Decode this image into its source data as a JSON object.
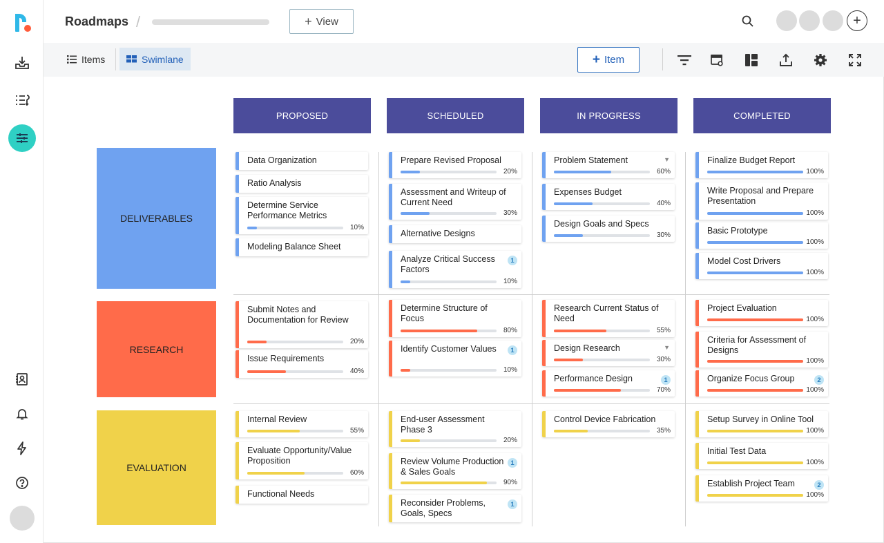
{
  "header": {
    "title": "Roadmaps",
    "separator": "/",
    "view_button": "View",
    "view_button_icon": "plus-icon"
  },
  "toolbar": {
    "tabs": [
      {
        "label": "Items",
        "icon": "list-icon",
        "active": false
      },
      {
        "label": "Swimlane",
        "icon": "swimlane-icon",
        "active": true
      }
    ],
    "item_button": "Item",
    "tool_icons": [
      "filter-icon",
      "card-settings-icon",
      "layout-icon",
      "export-icon",
      "settings-icon",
      "fullscreen-icon"
    ]
  },
  "rail_icons": [
    "inbox-icon",
    "list-sort-icon",
    "roadmap-icon",
    "contacts-icon",
    "bell-icon",
    "lightning-icon",
    "help-icon"
  ],
  "colors": {
    "header": "#4b4c9b",
    "deliverables": "#6fa2f0",
    "research": "#ff6b4a",
    "evaluation": "#f0d24a",
    "teal": "#2fd0c4",
    "accent": "#2260b8"
  },
  "columns": [
    "PROPOSED",
    "SCHEDULED",
    "IN PROGRESS",
    "COMPLETED"
  ],
  "lanes": [
    {
      "name": "DELIVERABLES",
      "cards": [
        [
          {
            "title": "Data Organization"
          },
          {
            "title": "Ratio Analysis"
          },
          {
            "title": "Determine Service Performance Metrics",
            "progress": 10,
            "label": "10%"
          },
          {
            "title": "Modeling Balance Sheet"
          }
        ],
        [
          {
            "title": "Prepare Revised Proposal",
            "progress": 20,
            "label": "20%"
          },
          {
            "title": "Assessment and Writeup of Current Need",
            "progress": 30,
            "label": "30%"
          },
          {
            "title": "Alternative Designs"
          },
          {
            "title": "Analyze Critical Success Factors",
            "progress": 10,
            "label": "10%",
            "badge": "1"
          }
        ],
        [
          {
            "title": "Problem Statement",
            "progress": 60,
            "label": "60%",
            "caret": "▼"
          },
          {
            "title": "Expenses Budget",
            "progress": 40,
            "label": "40%"
          },
          {
            "title": "Design Goals and Specs",
            "progress": 30,
            "label": "30%"
          }
        ],
        [
          {
            "title": "Finalize Budget Report",
            "progress": 100,
            "label": "100%"
          },
          {
            "title": "Write Proposal and Prepare Presentation",
            "progress": 100,
            "label": "100%"
          },
          {
            "title": "Basic Prototype",
            "progress": 100,
            "label": "100%"
          },
          {
            "title": "Model Cost Drivers",
            "progress": 100,
            "label": "100%"
          }
        ]
      ]
    },
    {
      "name": "RESEARCH",
      "cards": [
        [
          {
            "title": "Submit Notes and Documentation for Review",
            "progress": 20,
            "label": "20%"
          },
          {
            "title": "Issue Requirements",
            "progress": 40,
            "label": "40%"
          }
        ],
        [
          {
            "title": "Determine Structure of Focus",
            "progress": 80,
            "label": "80%"
          },
          {
            "title": "Identify Customer Values",
            "progress": 10,
            "label": "10%",
            "badge": "1"
          }
        ],
        [
          {
            "title": "Research Current Status of Need",
            "progress": 55,
            "label": "55%"
          },
          {
            "title": "Design Research",
            "progress": 30,
            "label": "30%",
            "caret": "▼"
          },
          {
            "title": "Performance Design",
            "progress": 70,
            "label": "70%",
            "badge": "1"
          }
        ],
        [
          {
            "title": "Project Evaluation",
            "progress": 100,
            "label": "100%"
          },
          {
            "title": "Criteria for Assessment of Designs",
            "progress": 100,
            "label": "100%"
          },
          {
            "title": "Organize Focus Group",
            "progress": 100,
            "label": "100%",
            "badge": "2"
          }
        ]
      ]
    },
    {
      "name": "EVALUATION",
      "cards": [
        [
          {
            "title": "Internal Review",
            "progress": 55,
            "label": "55%"
          },
          {
            "title": "Evaluate Opportunity/Value Proposition",
            "progress": 60,
            "label": "60%"
          },
          {
            "title": "Functional Needs"
          }
        ],
        [
          {
            "title": "End-user Assessment Phase 3",
            "progress": 20,
            "label": "20%"
          },
          {
            "title": "Review Volume Production & Sales Goals",
            "progress": 90,
            "label": "90%",
            "badge": "1"
          },
          {
            "title": "Reconsider Problems, Goals, Specs",
            "badge": "1"
          }
        ],
        [
          {
            "title": "Control Device Fabrication",
            "progress": 35,
            "label": "35%"
          }
        ],
        [
          {
            "title": "Setup Survey in Online Tool",
            "progress": 100,
            "label": "100%"
          },
          {
            "title": "Initial Test Data",
            "progress": 100,
            "label": "100%"
          },
          {
            "title": "Establish Project Team",
            "progress": 100,
            "label": "100%",
            "badge": "2"
          }
        ]
      ]
    }
  ]
}
